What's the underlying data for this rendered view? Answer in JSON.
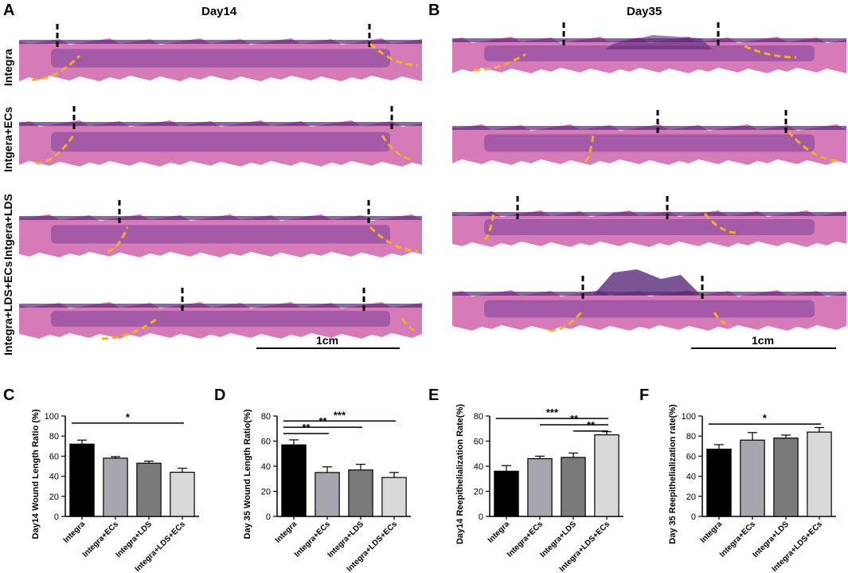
{
  "panels_top": {
    "A": {
      "letter": "A",
      "title": "Day14",
      "scale": "1cm",
      "rows": [
        "Integra",
        "Intgera+ECs",
        "Intgera+LDS",
        "Integra+LDS+ECs"
      ]
    },
    "B": {
      "letter": "B",
      "title": "Day35",
      "scale": "1cm"
    }
  },
  "colors": {
    "tissue_pink": "#d77ab8",
    "tissue_purple": "#7a3f97",
    "tissue_dark": "#5a2a78",
    "dash_yellow": "#f2b01e",
    "bar_black": "#000000",
    "bar_lightgray": "#a6a6ae",
    "bar_midgray": "#7a7a7a",
    "bar_palegray": "#d9d9d9"
  },
  "chart_data": [
    {
      "letter": "C",
      "type": "bar",
      "categories": [
        "Integra",
        "Integra+ECs",
        "Integra+LDS",
        "Integra+LDS+ECs"
      ],
      "values": [
        72,
        58,
        53,
        44
      ],
      "errors": [
        4,
        1.5,
        2,
        4
      ],
      "ylabel": "Day14 Wound Length Ratio (%)",
      "ylim": [
        0,
        100
      ],
      "yticks": [
        "0",
        "20",
        "40",
        "60",
        "80",
        "100"
      ],
      "significance": [
        {
          "from": 0,
          "to": 3,
          "label": "*",
          "y": 93
        }
      ]
    },
    {
      "letter": "D",
      "type": "bar",
      "categories": [
        "Integra",
        "Integra+ECs",
        "Integra+LDS",
        "Integra+LDS+ECs"
      ],
      "values": [
        57,
        35,
        37,
        31
      ],
      "errors": [
        4,
        4.5,
        4.5,
        4
      ],
      "ylabel": "Day 35 Wound Length Ratio(%)",
      "ylim": [
        0,
        80
      ],
      "yticks": [
        "0",
        "20",
        "40",
        "60",
        "80"
      ],
      "significance": [
        {
          "from": 0,
          "to": 1,
          "label": "**",
          "y": 66
        },
        {
          "from": 0,
          "to": 2,
          "label": "**",
          "y": 71
        },
        {
          "from": 0,
          "to": 3,
          "label": "***",
          "y": 76
        }
      ]
    },
    {
      "letter": "E",
      "type": "bar",
      "categories": [
        "Integra",
        "Integra+ECs",
        "Integra+LDS",
        "Integra+LDS+ECs"
      ],
      "values": [
        36,
        46,
        47,
        65
      ],
      "errors": [
        4.5,
        2,
        3.5,
        2.5
      ],
      "ylabel": "Day14 Reepithelialization Rate(%)",
      "ylim": [
        0,
        80
      ],
      "yticks": [
        "0",
        "20",
        "40",
        "60",
        "80"
      ],
      "significance": [
        {
          "from": 0,
          "to": 3,
          "label": "***",
          "y": 78
        },
        {
          "from": 1,
          "to": 3,
          "label": "**",
          "y": 73
        },
        {
          "from": 2,
          "to": 3,
          "label": "**",
          "y": 68
        }
      ]
    },
    {
      "letter": "F",
      "type": "bar",
      "categories": [
        "Integra",
        "Integra+ECs",
        "Integra+LDS",
        "Integra+LDS+ECs"
      ],
      "values": [
        67,
        76,
        78,
        84
      ],
      "errors": [
        4.5,
        7.5,
        3,
        4.5
      ],
      "ylabel": "Day 35 Reepithelialization rate(%)",
      "ylim": [
        0,
        100
      ],
      "yticks": [
        "0",
        "20",
        "40",
        "60",
        "80",
        "100"
      ],
      "significance": [
        {
          "from": 0,
          "to": 3,
          "label": "*",
          "y": 92
        }
      ]
    }
  ]
}
